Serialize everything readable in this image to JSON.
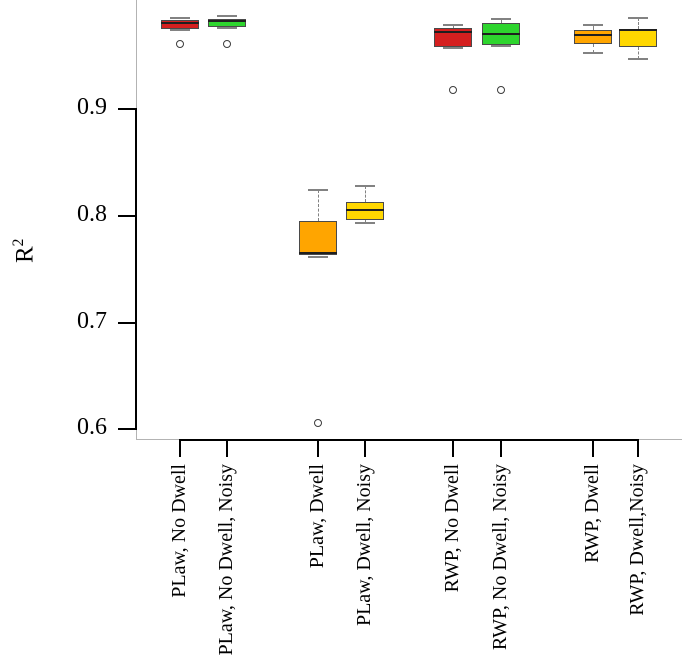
{
  "figure": {
    "background": "#ffffff",
    "ylabel_base": "R",
    "ylabel_exponent": "2"
  },
  "chart_data": {
    "type": "boxplot",
    "title": "",
    "xlabel": "",
    "ylabel": "R^2",
    "ylim": [
      0.59,
      1.005
    ],
    "grid": false,
    "legend": "none",
    "y_ticks": [
      0.9,
      0.8,
      0.7,
      0.6
    ],
    "y_tick_labels": [
      "0.9",
      "0.8",
      "0.7",
      "0.6"
    ],
    "categories": [
      "PLaw, No Dwell",
      "PLaw, No Dwell, Noisy",
      "PLaw, Dwell",
      "PLaw, Dwell, Noisy",
      "RWP, No Dwell",
      "RWP, No Dwell, Noisy",
      "RWP, Dwell",
      "RWP, Dwell,Noisy"
    ],
    "colors": {
      "red": "#d51f1f",
      "green": "#2ed52e",
      "orange": "#ffa500",
      "yellow": "#ffd700"
    },
    "boxes": [
      {
        "label": "PLaw, No Dwell",
        "color": "#d51f1f",
        "whisker_low": 0.974,
        "q1": 0.975,
        "median": 0.981,
        "q3": 0.984,
        "whisker_high": 0.986,
        "outliers": [
          0.961
        ]
      },
      {
        "label": "PLaw, No Dwell, Noisy",
        "color": "#2ed52e",
        "whisker_low": 0.976,
        "q1": 0.977,
        "median": 0.983,
        "q3": 0.985,
        "whisker_high": 0.987,
        "outliers": [
          0.961
        ]
      },
      {
        "label": "PLaw, Dwell",
        "color": "#ffa500",
        "whisker_low": 0.762,
        "q1": 0.763,
        "median": 0.765,
        "q3": 0.795,
        "whisker_high": 0.824,
        "outliers": [
          0.606
        ]
      },
      {
        "label": "PLaw, Dwell, Noisy",
        "color": "#ffd700",
        "whisker_low": 0.793,
        "q1": 0.796,
        "median": 0.806,
        "q3": 0.813,
        "whisker_high": 0.828,
        "outliers": []
      },
      {
        "label": "RWP, No Dwell",
        "color": "#d51f1f",
        "whisker_low": 0.957,
        "q1": 0.958,
        "median": 0.972,
        "q3": 0.976,
        "whisker_high": 0.979,
        "outliers": [
          0.918
        ]
      },
      {
        "label": "RWP, No Dwell, Noisy",
        "color": "#2ed52e",
        "whisker_low": 0.959,
        "q1": 0.96,
        "median": 0.971,
        "q3": 0.981,
        "whisker_high": 0.985,
        "outliers": [
          0.918
        ]
      },
      {
        "label": "RWP, Dwell",
        "color": "#ffa500",
        "whisker_low": 0.953,
        "q1": 0.961,
        "median": 0.97,
        "q3": 0.974,
        "whisker_high": 0.979,
        "outliers": []
      },
      {
        "label": "RWP, Dwell,Noisy",
        "color": "#ffd700",
        "whisker_low": 0.947,
        "q1": 0.958,
        "median": 0.974,
        "q3": 0.975,
        "whisker_high": 0.986,
        "outliers": []
      }
    ]
  }
}
